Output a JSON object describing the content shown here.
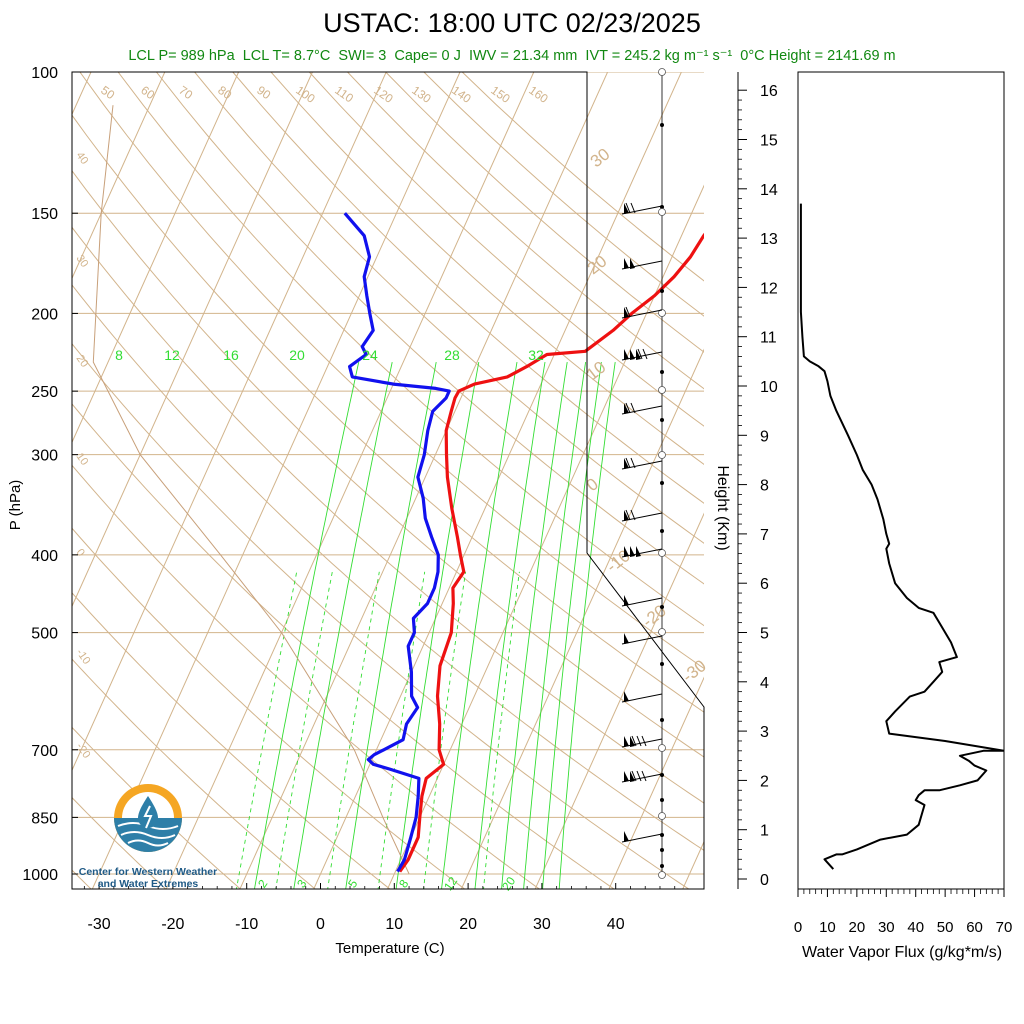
{
  "title": "USTAC: 18:00 UTC 02/23/2025",
  "subtitle": {
    "lcl_p": "LCL P= 989 hPa",
    "lcl_t": "LCL T= 8.7°C",
    "swi": "SWI= 3",
    "cape": "Cape= 0 J",
    "iwv": "IWV = 21.34 mm",
    "ivt": "IVT = 245.2 kg m⁻¹ s⁻¹",
    "freezing": "0°C Height = 2141.69 m"
  },
  "logo": {
    "line1": "Center for Western Weather",
    "line2": "and Water Extremes"
  },
  "colors": {
    "temperature": "#ee1111",
    "dewpoint": "#1111ee",
    "adiabat": "#d2b48c",
    "mixing_ratio": "#33dd33",
    "subtitle": "#118811"
  },
  "chart_data": [
    {
      "type": "line",
      "title": "",
      "xlabel": "Temperature (C)",
      "ylabel": "P (hPa)",
      "x_ticks": [
        -30,
        -20,
        -10,
        0,
        10,
        20,
        30,
        40
      ],
      "y_ticks": [
        100,
        150,
        200,
        250,
        300,
        400,
        500,
        700,
        850,
        1000
      ],
      "xlim": [
        -33,
        50
      ],
      "ylim": [
        1050,
        100
      ],
      "y_scale": "log",
      "skew": "skew-T",
      "series": [
        {
          "name": "",
          "role": "temperature",
          "p": [
            993,
            960,
            900,
            850,
            800,
            760,
            730,
            700,
            650,
            600,
            550,
            500,
            460,
            440,
            420,
            400,
            380,
            350,
            320,
            300,
            280,
            265,
            255,
            250,
            245,
            240,
            233,
            225,
            223,
            210,
            200,
            190,
            180,
            170,
            160,
            150
          ],
          "t": [
            10.6,
            11,
            11,
            10,
            9,
            8.5,
            10,
            8.5,
            7,
            5,
            3.5,
            3,
            1.5,
            0.5,
            1,
            -0.5,
            -2,
            -4.5,
            -7,
            -8.5,
            -10,
            -10.5,
            -10.8,
            -10.7,
            -9,
            -5,
            -3,
            -1,
            4,
            6.5,
            8,
            10,
            11.5,
            12.5,
            13,
            14
          ]
        },
        {
          "name": "",
          "role": "dewpoint",
          "p": [
            993,
            960,
            900,
            850,
            800,
            760,
            740,
            730,
            720,
            710,
            700,
            680,
            650,
            620,
            600,
            560,
            520,
            500,
            480,
            460,
            440,
            420,
            400,
            380,
            360,
            340,
            320,
            300,
            280,
            265,
            255,
            250,
            248,
            245,
            240,
            233,
            225,
            220,
            210,
            200,
            190,
            180,
            170,
            160,
            150
          ],
          "t": [
            10.3,
            10.5,
            10,
            9.5,
            8.5,
            7.5,
            3,
            0.5,
            -0.5,
            0,
            1,
            3,
            2.5,
            3,
            1.5,
            0,
            -2,
            -2,
            -3,
            -2,
            -2,
            -2.5,
            -3.5,
            -5.5,
            -7.5,
            -9,
            -11,
            -11.5,
            -12.5,
            -13,
            -12,
            -12,
            -14,
            -20,
            -26,
            -27,
            -25.5,
            -26.5,
            -26,
            -27.5,
            -29,
            -30.5,
            -31,
            -33,
            -37
          ]
        }
      ],
      "isotherm_labels": [
        -40,
        -30,
        -20,
        -10,
        0,
        10,
        20,
        30
      ],
      "adiabat_labels": [
        50,
        60,
        70,
        80,
        90,
        100,
        110,
        120,
        130,
        140,
        150,
        160
      ],
      "mixing_ratio_upper_labels": [
        8,
        12,
        16,
        20,
        24,
        28,
        32
      ],
      "mixing_ratio_lower_labels": [
        2,
        3,
        5,
        8,
        12,
        20
      ],
      "wind_profile_pressures": [
        150,
        175,
        200,
        225,
        250,
        275,
        300,
        350,
        400,
        450,
        500,
        600,
        700,
        750,
        850,
        900
      ]
    },
    {
      "type": "line",
      "title": "",
      "xlabel": "Water Vapor Flux (g/kg*m/s)",
      "ylabel": "Height (Km)",
      "x_ticks": [
        0,
        10,
        20,
        30,
        40,
        50,
        60,
        70
      ],
      "y_ticks": [
        0,
        1,
        2,
        3,
        4,
        5,
        6,
        7,
        8,
        9,
        10,
        11,
        12,
        13,
        14,
        15,
        16
      ],
      "xlim": [
        0,
        70
      ],
      "ylim": [
        -0.2,
        16.3
      ],
      "series": [
        {
          "name": "",
          "x": [
            12,
            9,
            13,
            15,
            20,
            28,
            37,
            41,
            43,
            40,
            41,
            43,
            48,
            55,
            61,
            64,
            60,
            58,
            55,
            63,
            70,
            50,
            31,
            30,
            33,
            38,
            43,
            46,
            49,
            48,
            54,
            52,
            48,
            46,
            41,
            37,
            33,
            31,
            30,
            31,
            30,
            29,
            27,
            25,
            22,
            20,
            17,
            13,
            11,
            10,
            9,
            7,
            4,
            2,
            1.5,
            1,
            1,
            1,
            1
          ],
          "y": [
            0.2,
            0.4,
            0.5,
            0.5,
            0.6,
            0.8,
            0.9,
            1.1,
            1.5,
            1.6,
            1.7,
            1.8,
            1.8,
            1.9,
            2.0,
            2.2,
            2.3,
            2.4,
            2.5,
            2.6,
            2.6,
            2.8,
            2.95,
            3.2,
            3.4,
            3.7,
            3.8,
            4.0,
            4.2,
            4.4,
            4.5,
            4.8,
            5.2,
            5.4,
            5.5,
            5.7,
            6.0,
            6.4,
            6.7,
            6.8,
            7.0,
            7.3,
            7.7,
            8.0,
            8.3,
            8.6,
            9.0,
            9.5,
            9.8,
            10.1,
            10.3,
            10.4,
            10.5,
            10.6,
            11.0,
            11.5,
            12.5,
            13.6,
            13.7
          ]
        }
      ]
    }
  ]
}
